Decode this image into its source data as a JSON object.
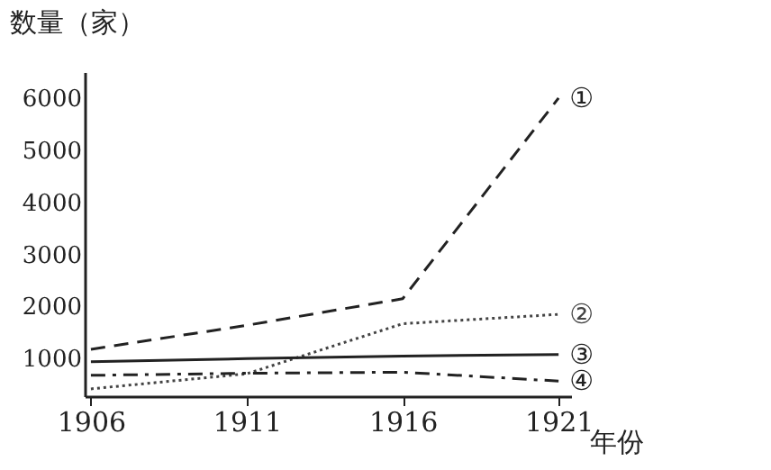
{
  "chart_data": {
    "type": "line",
    "xlabel": "年份",
    "ylabel": "数量（家）",
    "x": [
      1906,
      1911,
      1916,
      1921
    ],
    "xlim": [
      1905.8,
      1921.4
    ],
    "xticks": [
      1906,
      1911,
      1916,
      1921
    ],
    "ylim": [
      280,
      6500
    ],
    "yticks": [
      1000,
      2000,
      3000,
      4000,
      5000,
      6000
    ],
    "grid": false,
    "marker": "none",
    "series": [
      {
        "name": "①",
        "color": "#222222",
        "line_style": "dashed",
        "values": [
          1180,
          1640,
          2150,
          6000
        ]
      },
      {
        "name": "②",
        "color": "#444444",
        "line_style": "dotted",
        "values": [
          420,
          710,
          1670,
          1850
        ]
      },
      {
        "name": "③",
        "color": "#222222",
        "line_style": "solid",
        "values": [
          940,
          1000,
          1050,
          1080
        ]
      },
      {
        "name": "④",
        "color": "#222222",
        "line_style": "dashdot",
        "values": [
          680,
          720,
          740,
          570
        ]
      }
    ]
  }
}
